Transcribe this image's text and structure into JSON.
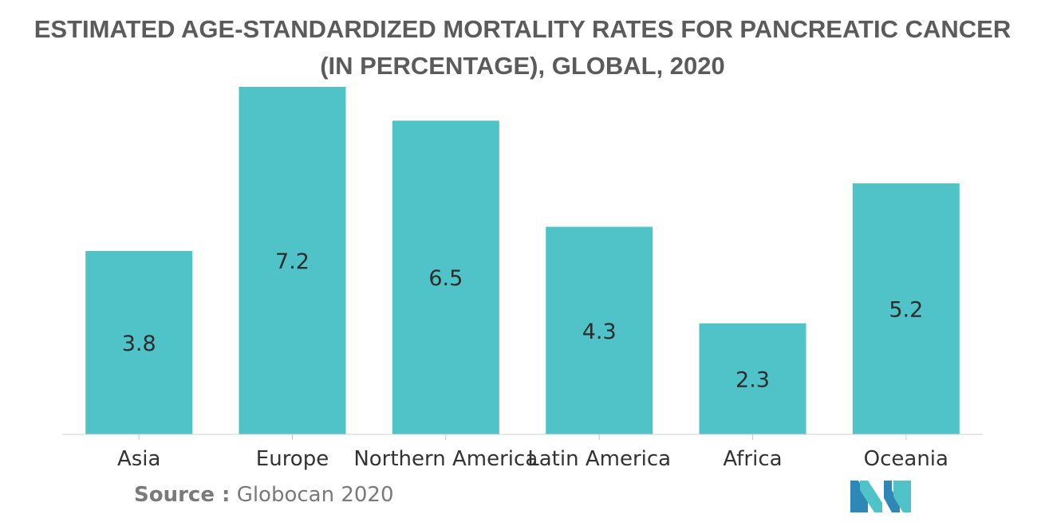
{
  "chart_data": {
    "type": "bar",
    "title_lines": [
      "ESTIMATED AGE-STANDARDIZED MORTALITY RATES FOR PANCREATIC CANCER",
      "(IN PERCENTAGE), GLOBAL, 2020"
    ],
    "categories": [
      "Asia",
      "Europe",
      "Northern America",
      "Latin America",
      "Africa",
      "Oceania"
    ],
    "values": [
      3.8,
      7.2,
      6.5,
      4.3,
      2.3,
      5.2
    ],
    "value_labels": [
      "3.8",
      "7.2",
      "6.5",
      "4.3",
      "2.3",
      "5.2"
    ],
    "xlabel": "",
    "ylabel": "",
    "ylim": [
      0,
      7.2
    ],
    "grid": false,
    "legend": "none",
    "bar_color": "#50c3c9"
  },
  "source": {
    "label": "Source :",
    "text": "Globocan 2020"
  },
  "logo": {
    "icon": "mordor-intelligence-logo-icon",
    "colors": [
      "#2f87b8",
      "#50c3c9"
    ]
  }
}
